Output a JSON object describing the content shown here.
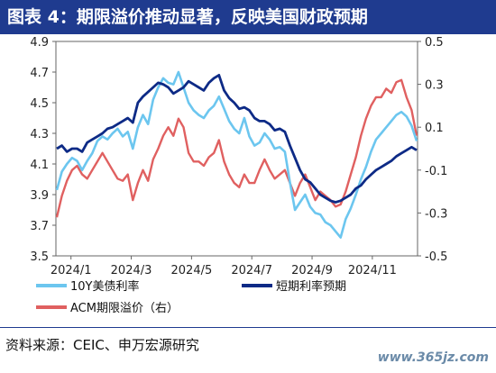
{
  "title": "图表 4：期限溢价推动显著，反映美国财政预期",
  "source": "资料来源：CEIC、申万宏源研究",
  "watermark": "www.365jz.com",
  "colors": {
    "title_bg": "#1f3b8f",
    "series1": "#6cc6ef",
    "series2": "#0d2a86",
    "series3": "#e06060"
  },
  "chart_data": {
    "type": "line",
    "x_ticks": [
      "2024/1",
      "2024/3",
      "2024/5",
      "2024/7",
      "2024/9",
      "2024/11"
    ],
    "y_left": {
      "min": 3.5,
      "max": 4.9,
      "ticks": [
        "3.5",
        "3.7",
        "3.9",
        "4.1",
        "4.3",
        "4.5",
        "4.7",
        "4.9"
      ]
    },
    "y_right": {
      "min": -0.5,
      "max": 0.5,
      "ticks": [
        "-0.5",
        "-0.3",
        "-0.1",
        "0.1",
        "0.3",
        "0.5"
      ]
    },
    "legend": [
      "10Y美债利率",
      "短期利率预期",
      "ACM期限溢价（右）"
    ],
    "series": [
      {
        "name": "10Y美债利率",
        "axis": "left",
        "color": "#6cc6ef",
        "values": [
          3.93,
          4.05,
          4.1,
          4.14,
          4.12,
          4.06,
          4.12,
          4.17,
          4.25,
          4.28,
          4.26,
          4.3,
          4.33,
          4.28,
          4.31,
          4.2,
          4.34,
          4.42,
          4.36,
          4.52,
          4.6,
          4.66,
          4.63,
          4.62,
          4.7,
          4.6,
          4.5,
          4.45,
          4.42,
          4.4,
          4.45,
          4.48,
          4.54,
          4.46,
          4.38,
          4.33,
          4.3,
          4.4,
          4.28,
          4.22,
          4.24,
          4.3,
          4.26,
          4.2,
          4.21,
          4.18,
          3.98,
          3.8,
          3.85,
          3.9,
          3.82,
          3.78,
          3.77,
          3.72,
          3.7,
          3.66,
          3.62,
          3.74,
          3.81,
          3.9,
          4.0,
          4.08,
          4.18,
          4.26,
          4.3,
          4.34,
          4.38,
          4.42,
          4.44,
          4.41,
          4.35,
          4.25
        ]
      },
      {
        "name": "短期利率预期",
        "axis": "left",
        "color": "#0d2a86",
        "values": [
          4.2,
          4.22,
          4.18,
          4.2,
          4.2,
          4.18,
          4.24,
          4.26,
          4.28,
          4.3,
          4.33,
          4.34,
          4.36,
          4.38,
          4.4,
          4.37,
          4.5,
          4.54,
          4.57,
          4.6,
          4.63,
          4.62,
          4.6,
          4.56,
          4.58,
          4.6,
          4.64,
          4.62,
          4.6,
          4.58,
          4.63,
          4.66,
          4.68,
          4.58,
          4.53,
          4.5,
          4.46,
          4.47,
          4.45,
          4.4,
          4.38,
          4.38,
          4.36,
          4.32,
          4.33,
          4.31,
          4.22,
          4.14,
          4.06,
          4.0,
          3.98,
          3.94,
          3.9,
          3.88,
          3.86,
          3.85,
          3.86,
          3.88,
          3.9,
          3.94,
          3.96,
          4.0,
          4.03,
          4.06,
          4.08,
          4.1,
          4.12,
          4.15,
          4.17,
          4.19,
          4.21,
          4.19
        ]
      },
      {
        "name": "ACM期限溢价（右）",
        "axis": "right",
        "color": "#e06060",
        "values": [
          -0.32,
          -0.22,
          -0.15,
          -0.1,
          -0.08,
          -0.12,
          -0.14,
          -0.1,
          -0.06,
          -0.02,
          -0.06,
          -0.1,
          -0.14,
          -0.15,
          -0.12,
          -0.24,
          -0.16,
          -0.1,
          -0.15,
          -0.05,
          0.0,
          0.06,
          0.1,
          0.06,
          0.14,
          0.1,
          -0.02,
          -0.06,
          -0.06,
          -0.08,
          -0.04,
          -0.02,
          0.04,
          -0.06,
          -0.12,
          -0.16,
          -0.18,
          -0.12,
          -0.16,
          -0.16,
          -0.1,
          -0.05,
          -0.1,
          -0.14,
          -0.12,
          -0.1,
          -0.16,
          -0.22,
          -0.16,
          -0.12,
          -0.18,
          -0.24,
          -0.2,
          -0.22,
          -0.24,
          -0.27,
          -0.26,
          -0.2,
          -0.12,
          -0.04,
          0.06,
          0.14,
          0.2,
          0.24,
          0.24,
          0.28,
          0.26,
          0.31,
          0.32,
          0.24,
          0.18,
          0.06
        ]
      }
    ]
  }
}
